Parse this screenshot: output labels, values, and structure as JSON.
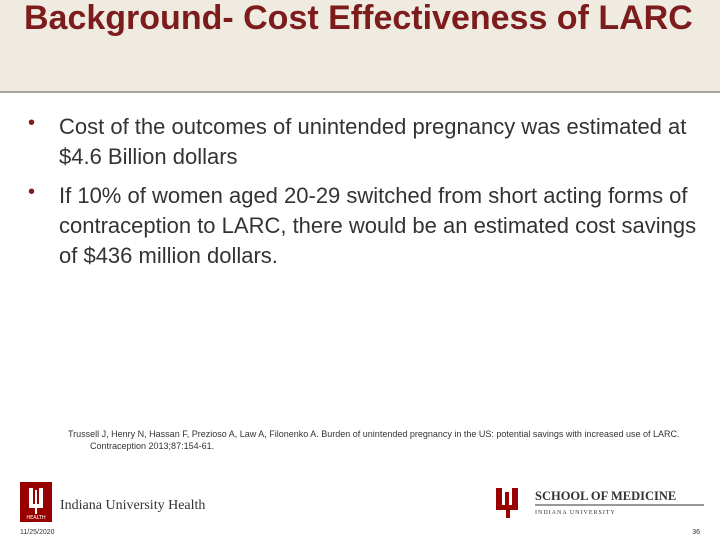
{
  "header": {
    "title": "Background- Cost Effectiveness of LARC"
  },
  "bullets": [
    "Cost of the outcomes of unintended pregnancy was estimated at $4.6 Billion dollars",
    "If 10% of women aged 20-29 switched from short acting forms of contraception to LARC, there would be an estimated cost savings of $436 million dollars."
  ],
  "citation": "Trussell J, Henry N, Hassan F, Prezioso A, Law A, Filonenko A.  Burden of unintended pregnancy in the US: potential savings with increased use of LARC.  Contraception 2013;87:154-61.",
  "footer": {
    "left_logo_badge": "HEALTH",
    "left_logo_text": "Indiana University Health",
    "right_logo_title": "SCHOOL OF MEDICINE",
    "right_logo_subtitle": "INDIANA UNIVERSITY",
    "date": "11/25/2020",
    "page_number": "36"
  }
}
